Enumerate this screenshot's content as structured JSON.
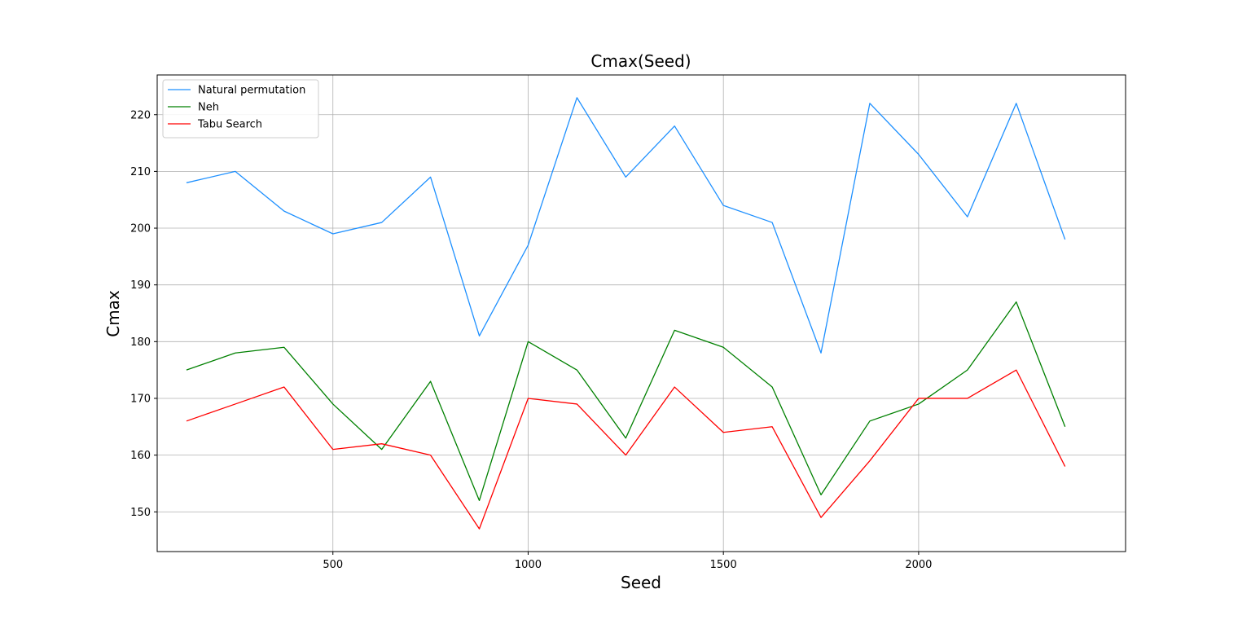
{
  "chart_data": {
    "type": "line",
    "title": "Cmax(Seed)",
    "xlabel": "Seed",
    "ylabel": "Cmax",
    "xlim": [
      50,
      2530
    ],
    "ylim": [
      143,
      227
    ],
    "x_ticks": [
      500,
      1000,
      1500,
      2000
    ],
    "y_ticks": [
      150,
      160,
      170,
      180,
      190,
      200,
      210,
      220
    ],
    "grid": true,
    "legend_position": "top-left",
    "x": [
      125,
      250,
      375,
      500,
      625,
      750,
      875,
      1000,
      1125,
      1250,
      1375,
      1500,
      1625,
      1750,
      1875,
      2000,
      2125,
      2250,
      2375
    ],
    "series": [
      {
        "name": "Natural permutation",
        "color": "#1e90ff",
        "values": [
          208,
          210,
          203,
          199,
          201,
          209,
          181,
          197,
          223,
          209,
          218,
          204,
          201,
          178,
          222,
          213,
          202,
          222,
          198
        ]
      },
      {
        "name": "Neh",
        "color": "#008000",
        "values": [
          175,
          178,
          179,
          169,
          161,
          173,
          152,
          180,
          175,
          163,
          182,
          179,
          172,
          153,
          166,
          169,
          175,
          187,
          165
        ]
      },
      {
        "name": "Tabu Search",
        "color": "#ff0000",
        "values": [
          166,
          169,
          172,
          161,
          162,
          160,
          147,
          170,
          169,
          160,
          172,
          164,
          165,
          149,
          159,
          170,
          170,
          175,
          158
        ]
      }
    ]
  }
}
